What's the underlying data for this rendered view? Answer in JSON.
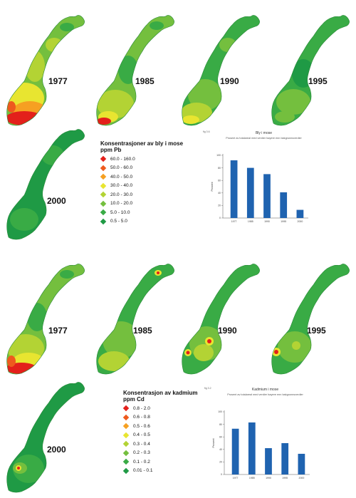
{
  "colors": {
    "c1": "#1f9a45",
    "c2": "#39ab45",
    "c3": "#74bf3e",
    "c4": "#b3d334",
    "c5": "#e8e530",
    "c6": "#f6a022",
    "c7": "#ee5a1e",
    "c8": "#e3201b",
    "bar": "#1f63b0"
  },
  "lead_section": {
    "maps": [
      {
        "year": "1977",
        "scheme": "lead1977"
      },
      {
        "year": "1985",
        "scheme": "lead1985"
      },
      {
        "year": "1990",
        "scheme": "lead1990"
      },
      {
        "year": "1995",
        "scheme": "lead1995"
      },
      {
        "year": "2000",
        "scheme": "lead2000"
      }
    ],
    "legend": {
      "title_line1": "Konsentrasjoner av bly i mose",
      "title_line2": "ppm Pb",
      "items": [
        {
          "label": "60.0 - 160.0",
          "color": "#e3201b"
        },
        {
          "label": "50.0 - 60.0",
          "color": "#ee5a1e"
        },
        {
          "label": "40.0 - 50.0",
          "color": "#f6a022"
        },
        {
          "label": "30.0 - 40.0",
          "color": "#e8e530"
        },
        {
          "label": "20.0 - 30.0",
          "color": "#b3d334"
        },
        {
          "label": "10.0 - 20.0",
          "color": "#74bf3e"
        },
        {
          "label": "5.0 - 10.0",
          "color": "#39ab45"
        },
        {
          "label": "0.5 - 5.0",
          "color": "#1f9a45"
        }
      ]
    }
  },
  "cadmium_section": {
    "maps": [
      {
        "year": "1977",
        "scheme": "cd1977"
      },
      {
        "year": "1985",
        "scheme": "cd1985"
      },
      {
        "year": "1990",
        "scheme": "cd1990"
      },
      {
        "year": "1995",
        "scheme": "cd1995"
      },
      {
        "year": "2000",
        "scheme": "cd2000"
      }
    ],
    "legend": {
      "title_line1": "Konsentrasjon av kadmium",
      "title_line2": "ppm Cd",
      "items": [
        {
          "label": "0.8 - 2.0",
          "color": "#e3201b"
        },
        {
          "label": "0.6 - 0.8",
          "color": "#ee5a1e"
        },
        {
          "label": "0.5 - 0.6",
          "color": "#f6a022"
        },
        {
          "label": "0.4 - 0.5",
          "color": "#e8e530"
        },
        {
          "label": "0.3 - 0.4",
          "color": "#b3d334"
        },
        {
          "label": "0.2 - 0.3",
          "color": "#74bf3e"
        },
        {
          "label": "0.1 - 0.2",
          "color": "#39ab45"
        },
        {
          "label": "0.01 - 0.1",
          "color": "#1f9a45"
        }
      ]
    }
  },
  "chart_data": [
    {
      "type": "bar",
      "fig_label": "fig 3.6",
      "title": "Bly i mose",
      "subtitle": "Prosent av totalareal med verdier høyere enn bakgrunnsverdier",
      "ylabel": "Prosent",
      "xlabel": "",
      "categories": [
        "1977",
        "1985",
        "1990",
        "1995",
        "2000"
      ],
      "values": [
        92,
        80,
        70,
        41,
        13
      ],
      "yticks": [
        0,
        20,
        40,
        60,
        80,
        100
      ],
      "ylim": [
        0,
        100
      ],
      "grid": false,
      "legend": "none"
    },
    {
      "type": "bar",
      "fig_label": "fig 3.2",
      "title": "Kadmium i mose",
      "subtitle": "Prosent av totalareal med verdier høyere enn bakgrunnsverdier",
      "ylabel": "Prosent",
      "xlabel": "",
      "categories": [
        "1977",
        "1985",
        "1990",
        "1995",
        "2000"
      ],
      "values": [
        73,
        83,
        42,
        50,
        33
      ],
      "yticks": [
        0,
        20,
        40,
        60,
        80,
        100
      ],
      "ylim": [
        0,
        100
      ],
      "grid": false,
      "legend": "none"
    }
  ]
}
